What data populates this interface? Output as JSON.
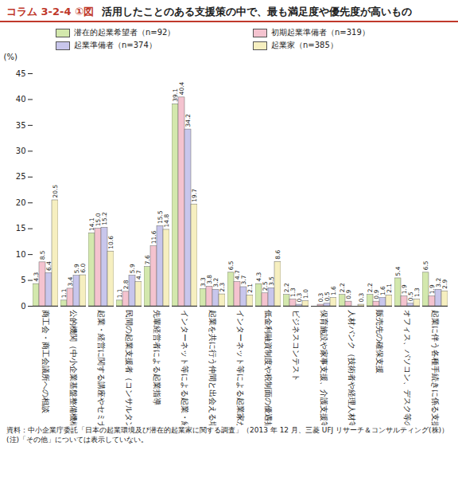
{
  "chart_data": {
    "type": "bar",
    "title": "コラム 3-2-4 ①図",
    "subtitle": "活用したことのある支援策の中で、最も満足度や優先度が高いもの",
    "y_label": "(%)",
    "categories": [
      "商工会・商工会議所への相談",
      "公的機関（中小企業基盤整備機構、自治体の窓口等）への相談",
      "起業・経営に関する講座やセミナー",
      "民間の起業支援者（コンサルタント等）への相談",
      "先輩経営者による起業指導",
      "インターネット等による起業・経営に関する情報提供",
      "起業を共に行う仲間と出会える場所の提供",
      "インターネット等による起業家が情報交換を行う場所の提供",
      "低金利融資制度や税制面の優遇措置",
      "ビジネスコンテスト",
      "保育施設や家事支援、介護支援等",
      "人材バンク（技術者や経理人材等）",
      "販売先の確保支援",
      "オフィス、パソコン、デスク等の無償提供",
      "起業に伴う各種手続きに係る支援"
    ],
    "series": [
      {
        "name": "潜在的起業希望者（n=92）",
        "color": "#d3e8ad",
        "values": [
          4.3,
          1.1,
          14.1,
          1.1,
          7.6,
          39.1,
          3.3,
          6.5,
          4.3,
          2.2,
          null,
          2.2,
          2.2,
          5.4,
          6.5
        ],
        "value_labels": [
          "4.3",
          "1.1",
          "14.1",
          "1.1",
          "7.6",
          "39.1",
          "3.3",
          "6.5",
          "4.3",
          "2.2",
          null,
          "2.2",
          "2.2",
          "5.4",
          "6.5"
        ]
      },
      {
        "name": "初期起業準備者（n=319）",
        "color": "#f4c3cf",
        "values": [
          8.5,
          3.4,
          15.0,
          2.8,
          11.6,
          40.4,
          3.8,
          4.7,
          2.5,
          1.3,
          0.3,
          0.9,
          0.9,
          1.9,
          1.9
        ],
        "value_labels": [
          "8.5",
          "3.4",
          "15.0",
          "2.8",
          "11.6",
          "40.4",
          "3.8",
          "4.7",
          "2.5",
          "1.3",
          "0.3",
          "0.9",
          "0.9",
          "1.9",
          "1.9"
        ]
      },
      {
        "name": "起業準備者（n=374）",
        "color": "#c8c6ec",
        "values": [
          6.4,
          5.9,
          15.2,
          5.9,
          15.5,
          34.2,
          3.2,
          3.7,
          3.5,
          0.3,
          0.5,
          null,
          1.6,
          0.5,
          3.2
        ],
        "value_labels": [
          "6.4",
          "5.9",
          "15.2",
          "5.9",
          "15.5",
          "34.2",
          "3.2",
          "3.7",
          "3.5",
          "0.3",
          "0.5",
          null,
          "1.6",
          "0.5",
          "3.2"
        ]
      },
      {
        "name": "起業家（n=385）",
        "color": "#f6efc0",
        "values": [
          20.5,
          6.0,
          10.6,
          4.7,
          14.8,
          19.7,
          2.3,
          2.1,
          8.6,
          1.0,
          1.6,
          0.3,
          2.1,
          1.3,
          2.9
        ],
        "value_labels": [
          "20.5",
          "6.0",
          "10.6",
          "4.7",
          "14.8",
          "19.7",
          "2.3",
          "2.1",
          "8.6",
          "1.0",
          "1.6",
          "0.3",
          "2.1",
          "1.3",
          "2.9"
        ]
      }
    ],
    "ylim": [
      0,
      45
    ],
    "yticks": [
      0,
      5,
      10,
      15,
      20,
      25,
      30,
      35,
      40,
      45
    ],
    "grid": false,
    "data_labels": true,
    "legend": "top",
    "notes": [
      "資料：中小企業庁委託「日本の起業環境及び潜在的起業家に関する調査」（2013 年 12 月、三菱 UFJ リサーチ＆コンサルティング(株)）",
      "(注)「その他」については表示していない。"
    ]
  }
}
